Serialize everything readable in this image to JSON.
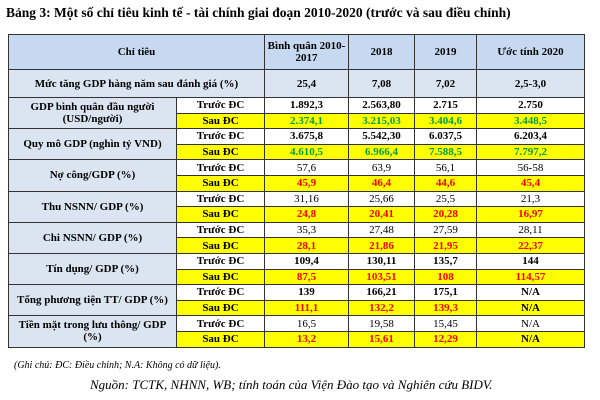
{
  "title": "Bảng 3: Một số chỉ tiêu kinh tế - tài chính giai đoạn 2010-2020 (trước và sau điều chỉnh)",
  "table": {
    "header": [
      "Chỉ tiêu",
      "Bình quân 2010-2017",
      "2018",
      "2019",
      "Ước tính  2020"
    ],
    "first_row": {
      "label": "Mức tăng GDP hàng năm sau đánh giá (%)",
      "values": [
        "25,4",
        "7,08",
        "7,02",
        "2,5-3,0"
      ]
    },
    "groups": [
      {
        "label": "GDP bình quân đầu người (USD/người)",
        "before": {
          "label": "Trước ĐC",
          "values": [
            "1.892,3",
            "2.563,80",
            "2.715",
            "2.750"
          ]
        },
        "after": {
          "label": "Sau ĐC",
          "values": [
            "2.374,1",
            "3.215,03",
            "3.404,6",
            "3.448,5"
          ]
        }
      },
      {
        "label": "Quy mô GDP (nghìn tỷ VND)",
        "before": {
          "label": "Trước ĐC",
          "values": [
            "3.675,8",
            "5.542,30",
            "6.037,5",
            "6.203,4"
          ]
        },
        "after": {
          "label": "Sau ĐC",
          "values": [
            "4.610,5",
            "6.966,4",
            "7.588,5",
            "7.797,2"
          ]
        }
      },
      {
        "label": "Nợ công/GDP (%)",
        "before": {
          "label": "Trước ĐC",
          "values": [
            "57,6",
            "63,9",
            "56,1",
            "56-58"
          ]
        },
        "after": {
          "label": "Sau ĐC",
          "values": [
            "45,9",
            "46,4",
            "44,6",
            "45,4"
          ]
        }
      },
      {
        "label": "Thu NSNN/ GDP (%)",
        "before": {
          "label": "Trước ĐC",
          "values": [
            "31,16",
            "25,66",
            "25,5",
            "21,3"
          ]
        },
        "after": {
          "label": "Sau ĐC",
          "values": [
            "24,8",
            "20,41",
            "20,28",
            "16,97"
          ]
        }
      },
      {
        "label": "Chi NSNN/ GDP (%)",
        "before": {
          "label": "Trước ĐC",
          "values": [
            "35,3",
            "27,48",
            "27,59",
            "28,11"
          ]
        },
        "after": {
          "label": "Sau ĐC",
          "values": [
            "28,1",
            "21,86",
            "21,95",
            "22,37"
          ]
        }
      },
      {
        "label": "Tín dụng/ GDP (%)",
        "before": {
          "label": "Trước ĐC",
          "values": [
            "109,4",
            "130,11",
            "135,7",
            "144"
          ]
        },
        "after": {
          "label": "Sau ĐC",
          "values": [
            "87,5",
            "103,51",
            "108",
            "114,57"
          ]
        }
      },
      {
        "label": "Tổng phương tiện TT/ GDP (%)",
        "before": {
          "label": "Trước ĐC",
          "values": [
            "139",
            "166,21",
            "175,1",
            "N/A"
          ]
        },
        "after": {
          "label": "Sau ĐC",
          "values": [
            "111,1",
            "132,2",
            "139,3",
            "N/A"
          ]
        }
      },
      {
        "label": "Tiền mặt trong lưu thông/ GDP (%)",
        "before": {
          "label": "Trước ĐC",
          "values": [
            "16,5",
            "19,58",
            "15,45",
            "N/A"
          ]
        },
        "after": {
          "label": "Sau ĐC",
          "values": [
            "13,2",
            "15,61",
            "12,29",
            "N/A"
          ]
        }
      }
    ]
  },
  "note": "(Ghi chú: ĐC: Điều chỉnh; N.A: Không có dữ liệu).",
  "source": "Nguồn: TCTK, NHNN, WB; tính toán của Viện Đào tạo và Nghiên cứu BIDV."
}
